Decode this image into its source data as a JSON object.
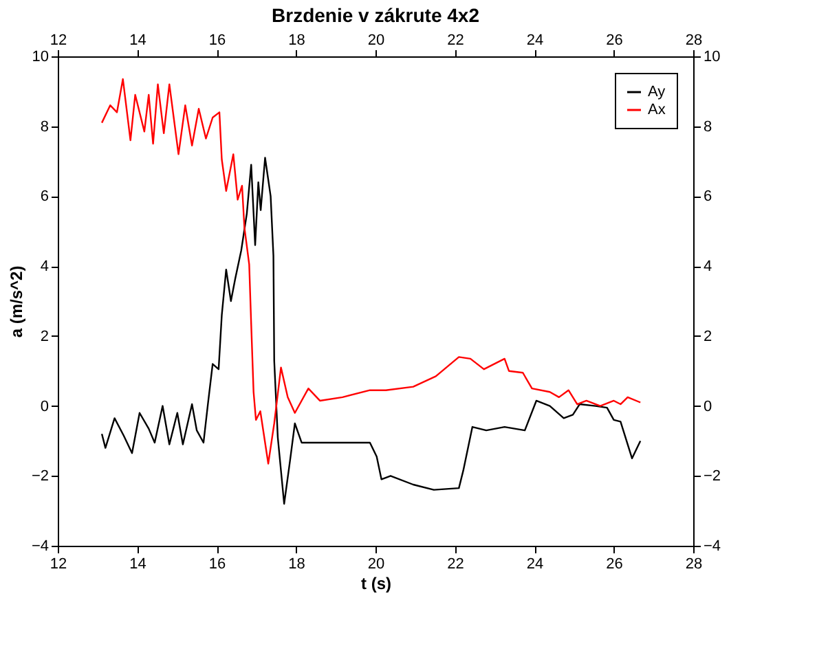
{
  "chart_data": {
    "type": "line",
    "title": "Brzdenie v zákrute 4x2",
    "xlabel": "t (s)",
    "ylabel": "a (m/s^2)",
    "xlim": [
      12,
      28
    ],
    "xticks": [
      12,
      14,
      16,
      18,
      20,
      22,
      24,
      26,
      28
    ],
    "x2lim": [
      12,
      28
    ],
    "x2ticks": [
      12,
      14,
      16,
      18,
      20,
      22,
      24,
      26,
      28
    ],
    "ylim": [
      -4,
      10
    ],
    "yticks": [
      -4,
      -2,
      0,
      2,
      4,
      6,
      8,
      10
    ],
    "y2lim": [
      -4,
      10
    ],
    "y2ticks": [
      -4,
      -2,
      0,
      2,
      4,
      6,
      8,
      10
    ],
    "grid": false,
    "legend": "top right",
    "marker": "none",
    "line_style": "solid",
    "series": [
      {
        "name": "Ay",
        "color": "#000000",
        "x": [
          13.11,
          13.2,
          13.43,
          13.66,
          13.87,
          14.06,
          14.29,
          14.44,
          14.64,
          14.81,
          15.01,
          15.15,
          15.38,
          15.5,
          15.67,
          15.78,
          15.9,
          16.05,
          16.13,
          16.24,
          16.36,
          16.47,
          16.62,
          16.76,
          16.87,
          16.97,
          17.05,
          17.11,
          17.22,
          17.36,
          17.43,
          17.45,
          17.54,
          17.7,
          17.85,
          17.97,
          18.14,
          18.94,
          19.86,
          20.03,
          20.15,
          20.38,
          20.95,
          21.47,
          22.1,
          22.21,
          22.44,
          22.79,
          23.25,
          23.76,
          24.05,
          24.39,
          24.74,
          24.97,
          25.14,
          25.54,
          25.83,
          26.0,
          26.17,
          26.46,
          26.67
        ],
        "values": [
          -0.8,
          -1.2,
          -0.35,
          -0.85,
          -1.35,
          -0.2,
          -0.65,
          -1.05,
          0,
          -1.1,
          -0.2,
          -1.1,
          0.05,
          -0.7,
          -1.05,
          0.05,
          1.2,
          1.05,
          2.6,
          3.9,
          3.0,
          3.65,
          4.45,
          5.5,
          6.9,
          4.6,
          6.4,
          5.6,
          7.1,
          6.0,
          4.3,
          1.3,
          -0.9,
          -2.8,
          -1.55,
          -0.5,
          -1.05,
          -1.05,
          -1.05,
          -1.45,
          -2.1,
          -2.0,
          -2.25,
          -2.4,
          -2.35,
          -1.85,
          -0.6,
          -0.7,
          -0.6,
          -0.7,
          0.15,
          0,
          -0.35,
          -0.25,
          0.05,
          0,
          -0.05,
          -0.4,
          -0.45,
          -1.5,
          -1.0
        ]
      },
      {
        "name": "Ax",
        "color": "#ff0000",
        "x": [
          13.11,
          13.32,
          13.49,
          13.64,
          13.83,
          13.95,
          14.18,
          14.29,
          14.4,
          14.52,
          14.67,
          14.81,
          15.04,
          15.21,
          15.38,
          15.55,
          15.73,
          15.9,
          16.07,
          16.13,
          16.24,
          16.42,
          16.53,
          16.64,
          16.7,
          16.82,
          16.87,
          16.93,
          16.99,
          17.1,
          17.3,
          17.45,
          17.62,
          17.79,
          17.97,
          18.31,
          18.6,
          19.17,
          19.86,
          20.26,
          20.95,
          21.52,
          22.1,
          22.39,
          22.73,
          23.25,
          23.36,
          23.71,
          23.94,
          24.39,
          24.62,
          24.86,
          25.08,
          25.31,
          25.66,
          26.0,
          26.17,
          26.35,
          26.67
        ],
        "values": [
          8.1,
          8.6,
          8.4,
          9.35,
          7.6,
          8.9,
          7.85,
          8.9,
          7.5,
          9.2,
          7.8,
          9.2,
          7.2,
          8.6,
          7.45,
          8.5,
          7.65,
          8.25,
          8.4,
          7.05,
          6.15,
          7.2,
          5.9,
          6.3,
          5.1,
          4.05,
          2.35,
          0.4,
          -0.4,
          -0.15,
          -1.65,
          -0.5,
          1.1,
          0.25,
          -0.2,
          0.5,
          0.15,
          0.25,
          0.45,
          0.45,
          0.55,
          0.85,
          1.4,
          1.35,
          1.05,
          1.35,
          1.0,
          0.95,
          0.5,
          0.4,
          0.25,
          0.45,
          0.05,
          0.15,
          0,
          0.15,
          0.05,
          0.25,
          0.1
        ]
      }
    ]
  }
}
